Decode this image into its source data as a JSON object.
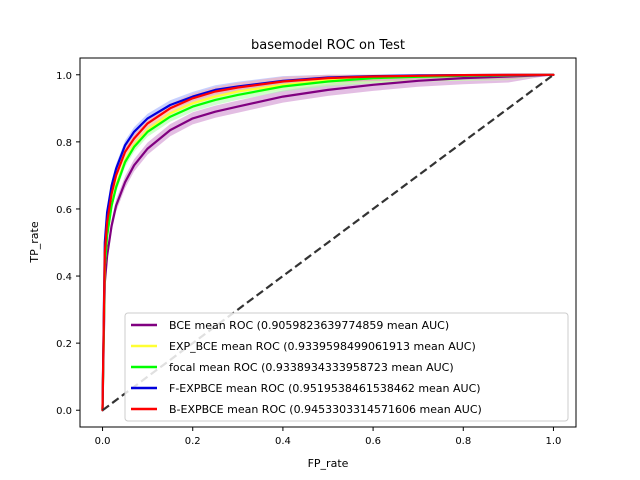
{
  "chart_data": {
    "type": "line",
    "title": "basemodel ROC on Test",
    "xlabel": "FP_rate",
    "ylabel": "TP_rate",
    "xlim": [
      -0.05,
      1.05
    ],
    "ylim": [
      -0.05,
      1.05
    ],
    "xticks": [
      0.0,
      0.2,
      0.4,
      0.6,
      0.8,
      1.0
    ],
    "yticks": [
      0.0,
      0.2,
      0.4,
      0.6,
      0.8,
      1.0
    ],
    "xtick_labels": [
      "0.0",
      "0.2",
      "0.4",
      "0.6",
      "0.8",
      "1.0"
    ],
    "ytick_labels": [
      "0.0",
      "0.2",
      "0.4",
      "0.6",
      "0.8",
      "1.0"
    ],
    "grid": false,
    "legend_position": "lower-right",
    "x": [
      0,
      0.005,
      0.01,
      0.02,
      0.03,
      0.05,
      0.07,
      0.1,
      0.15,
      0.2,
      0.25,
      0.3,
      0.4,
      0.5,
      0.6,
      0.7,
      0.8,
      0.9,
      1.0
    ],
    "series": [
      {
        "name": "BCE mean ROC (0.9059823639774859 mean AUC)",
        "color": "#800080",
        "band_color": "#cc88cc",
        "y": [
          0,
          0.38,
          0.46,
          0.55,
          0.61,
          0.68,
          0.73,
          0.78,
          0.835,
          0.87,
          0.89,
          0.905,
          0.935,
          0.955,
          0.97,
          0.982,
          0.99,
          0.995,
          1.0
        ],
        "band": 0.018
      },
      {
        "name": "EXP_BCE mean ROC (0.9339598499061913 mean AUC)",
        "color": "#ffff33",
        "band_color": "#ffffaa",
        "y": [
          0,
          0.43,
          0.52,
          0.61,
          0.67,
          0.745,
          0.79,
          0.835,
          0.885,
          0.915,
          0.935,
          0.95,
          0.97,
          0.984,
          0.99,
          0.994,
          0.997,
          0.999,
          1.0
        ],
        "band": 0.015
      },
      {
        "name": "focal mean ROC (0.9338934333958723 mean AUC)",
        "color": "#00ff00",
        "band_color": "#aaffaa",
        "y": [
          0,
          0.43,
          0.52,
          0.61,
          0.665,
          0.74,
          0.785,
          0.83,
          0.875,
          0.905,
          0.925,
          0.94,
          0.965,
          0.98,
          0.99,
          0.994,
          0.997,
          0.999,
          1.0
        ],
        "band": 0.015
      },
      {
        "name": "F-EXPBCE mean ROC (0.9519538461538462 mean AUC)",
        "color": "#0000dd",
        "band_color": "#99aaff",
        "y": [
          0,
          0.5,
          0.59,
          0.67,
          0.72,
          0.79,
          0.83,
          0.87,
          0.91,
          0.935,
          0.955,
          0.965,
          0.982,
          0.992,
          0.996,
          0.998,
          0.999,
          1.0,
          1.0
        ],
        "band": 0.014
      },
      {
        "name": "B-EXPBCE mean ROC (0.9453303314571606 mean AUC)",
        "color": "#ff0000",
        "band_color": "#ffaaaa",
        "y": [
          0,
          0.47,
          0.56,
          0.645,
          0.7,
          0.77,
          0.81,
          0.855,
          0.9,
          0.93,
          0.95,
          0.962,
          0.98,
          0.99,
          0.995,
          0.997,
          0.999,
          1.0,
          1.0
        ],
        "band": 0.014
      }
    ],
    "reference_line": {
      "style": "dashed",
      "color": "#333333",
      "x": [
        0,
        1
      ],
      "y": [
        0,
        1
      ]
    }
  }
}
